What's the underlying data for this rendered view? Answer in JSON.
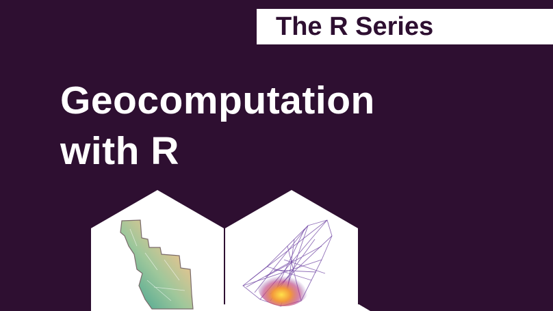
{
  "series": {
    "label": "The R Series"
  },
  "book": {
    "title_line1": "Geocomputation",
    "title_line2": "with R"
  },
  "palette": {
    "background": "#2e0f31",
    "banner": "#ffffff",
    "hex_fill": "#ffffff",
    "map_teal": "#3f9e8c",
    "map_tan": "#e6c28c",
    "map_red": "#d46a5f",
    "network_purple": "#6b3fa0",
    "network_yellow": "#ffd23f"
  },
  "hexagons": [
    {
      "icon": "terrain-map-icon"
    },
    {
      "icon": "network-graph-icon"
    }
  ]
}
